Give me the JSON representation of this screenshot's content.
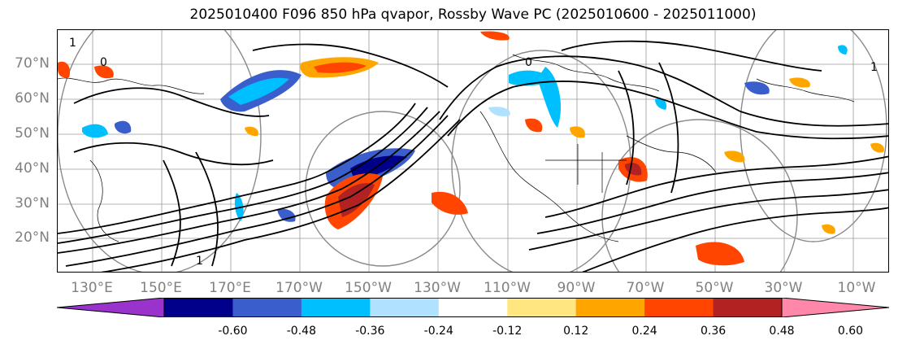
{
  "title": "2025010400 F096 850 hPa qvapor, Rossby Wave PC (2025010600 - 2025011000)",
  "lat_labels": [
    "70°N",
    "60°N",
    "50°N",
    "40°N",
    "30°N",
    "20°N"
  ],
  "lon_labels": [
    "130°E",
    "150°E",
    "170°E",
    "170°W",
    "150°W",
    "130°W",
    "110°W",
    "90°W",
    "70°W",
    "50°W",
    "30°W",
    "10°W"
  ],
  "colorbar": {
    "ticks": [
      "-0.60",
      "-0.48",
      "-0.36",
      "-0.24",
      "-0.12",
      "0.12",
      "0.24",
      "0.36",
      "0.48",
      "0.60"
    ],
    "colors": [
      "#9933cc",
      "#00008b",
      "#3a5fcd",
      "#00bfff",
      "#b0e2ff",
      "#ffffff",
      "#ffe680",
      "#ffa500",
      "#ff4500",
      "#b22222",
      "#ff88aa"
    ]
  },
  "contour_labels": [
    "1",
    "0",
    "0",
    "1",
    "1"
  ]
}
